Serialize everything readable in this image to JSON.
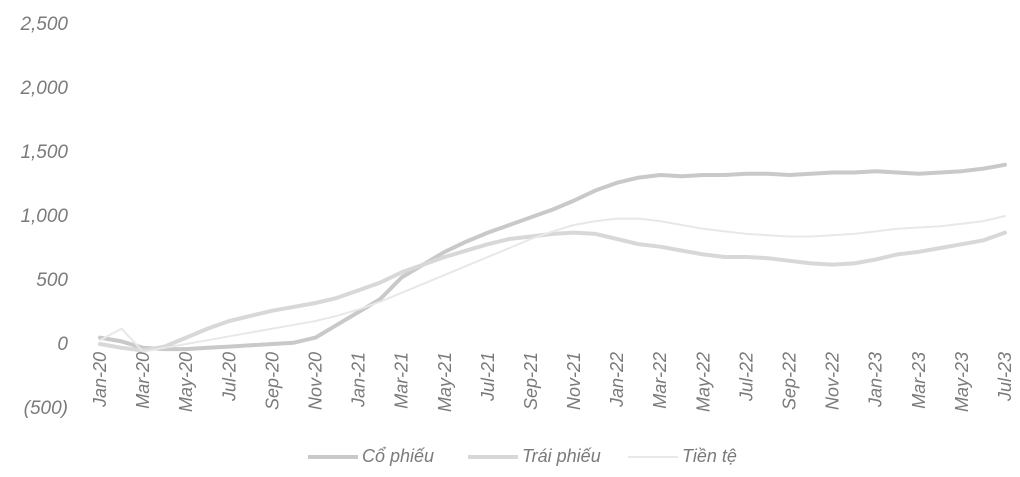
{
  "chart_data": {
    "type": "line",
    "title": "",
    "xlabel": "",
    "ylabel": "",
    "ylim": [
      -500,
      2500
    ],
    "yticks": [
      2500,
      2000,
      1500,
      1000,
      500,
      0,
      -500
    ],
    "ytick_labels": [
      "2,500",
      "2,000",
      "1,500",
      "1,000",
      "500",
      "0",
      "(500)"
    ],
    "x": [
      "Jan-20",
      "Feb-20",
      "Mar-20",
      "Apr-20",
      "May-20",
      "Jun-20",
      "Jul-20",
      "Aug-20",
      "Sep-20",
      "Oct-20",
      "Nov-20",
      "Dec-20",
      "Jan-21",
      "Feb-21",
      "Mar-21",
      "Apr-21",
      "May-21",
      "Jun-21",
      "Jul-21",
      "Aug-21",
      "Sep-21",
      "Oct-21",
      "Nov-21",
      "Dec-21",
      "Jan-22",
      "Feb-22",
      "Mar-22",
      "Apr-22",
      "May-22",
      "Jun-22",
      "Jul-22",
      "Aug-22",
      "Sep-22",
      "Oct-22",
      "Nov-22",
      "Dec-22",
      "Jan-23",
      "Feb-23",
      "Mar-23",
      "Apr-23",
      "May-23",
      "Jun-23",
      "Jul-23"
    ],
    "xtick_labels": [
      "Jan-20",
      "Mar-20",
      "May-20",
      "Jul-20",
      "Sep-20",
      "Nov-20",
      "Jan-21",
      "Mar-21",
      "May-21",
      "Jul-21",
      "Sep-21",
      "Nov-21",
      "Jan-22",
      "Mar-22",
      "May-22",
      "Jul-22",
      "Sep-22",
      "Nov-22",
      "Jan-23",
      "Mar-23",
      "May-23",
      "Jul-23"
    ],
    "grid": false,
    "legend": "bottom",
    "series": [
      {
        "name": "Cổ phiếu",
        "color": "#c9c9c9",
        "values": [
          50,
          20,
          -30,
          -40,
          -40,
          -30,
          -20,
          -10,
          0,
          10,
          50,
          150,
          250,
          350,
          520,
          620,
          720,
          800,
          870,
          930,
          990,
          1050,
          1120,
          1200,
          1260,
          1300,
          1320,
          1310,
          1320,
          1320,
          1330,
          1330,
          1320,
          1330,
          1340,
          1340,
          1350,
          1340,
          1330,
          1340,
          1350,
          1370,
          1400
        ]
      },
      {
        "name": "Trái phiếu",
        "color": "#d8d8d8",
        "values": [
          0,
          -30,
          -50,
          -20,
          50,
          120,
          180,
          220,
          260,
          290,
          320,
          360,
          420,
          480,
          560,
          620,
          680,
          730,
          780,
          820,
          840,
          860,
          870,
          860,
          820,
          780,
          760,
          730,
          700,
          680,
          680,
          670,
          650,
          630,
          620,
          630,
          660,
          700,
          720,
          750,
          780,
          810,
          870
        ]
      },
      {
        "name": "Tiền tệ",
        "color": "#e8e8e8",
        "values": [
          30,
          120,
          -60,
          -30,
          0,
          30,
          60,
          90,
          120,
          150,
          180,
          220,
          270,
          330,
          400,
          470,
          540,
          610,
          680,
          750,
          820,
          880,
          930,
          960,
          980,
          980,
          960,
          930,
          900,
          880,
          860,
          850,
          840,
          840,
          850,
          860,
          880,
          900,
          910,
          920,
          940,
          960,
          1000
        ]
      }
    ]
  }
}
